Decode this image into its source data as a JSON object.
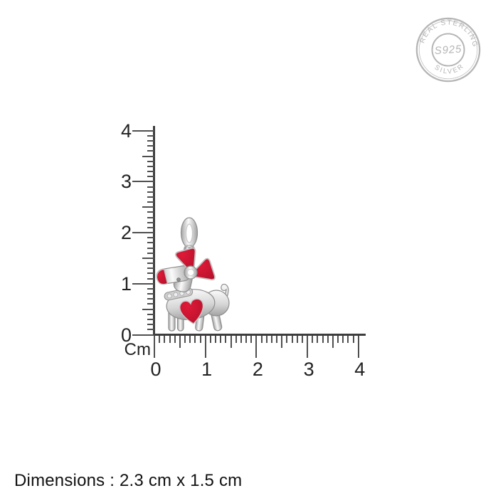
{
  "page": {
    "background": "#ffffff"
  },
  "stamp": {
    "arc_top_text": "REAL STERLING",
    "arc_bottom_text": "SILVER",
    "center_text": "S925",
    "color": "#b5b5b5",
    "inner_ring_color": "#c4c4c4"
  },
  "ruler": {
    "unit_label": "Cm",
    "min": 0,
    "max": 4,
    "minor_step": 0.1,
    "medium_step": 0.5,
    "major_step": 1,
    "vertical_labels": [
      "0",
      "1",
      "2",
      "3",
      "4"
    ],
    "horizontal_labels": [
      "0",
      "1",
      "2",
      "3",
      "4"
    ]
  },
  "pendant": {
    "label": "silver dog pendant with red enamel bow, nose and heart",
    "enamel_red": "#de1a38",
    "enamel_red_dark": "#b5102a",
    "silver_light": "#fafafa",
    "silver_mid": "#d6d6d6",
    "silver_dark": "#a2a2a2",
    "outline": "#8e8e8e"
  },
  "footer": {
    "dimensions_text": "Dimensions : 2.3 cm x 1.5 cm"
  }
}
